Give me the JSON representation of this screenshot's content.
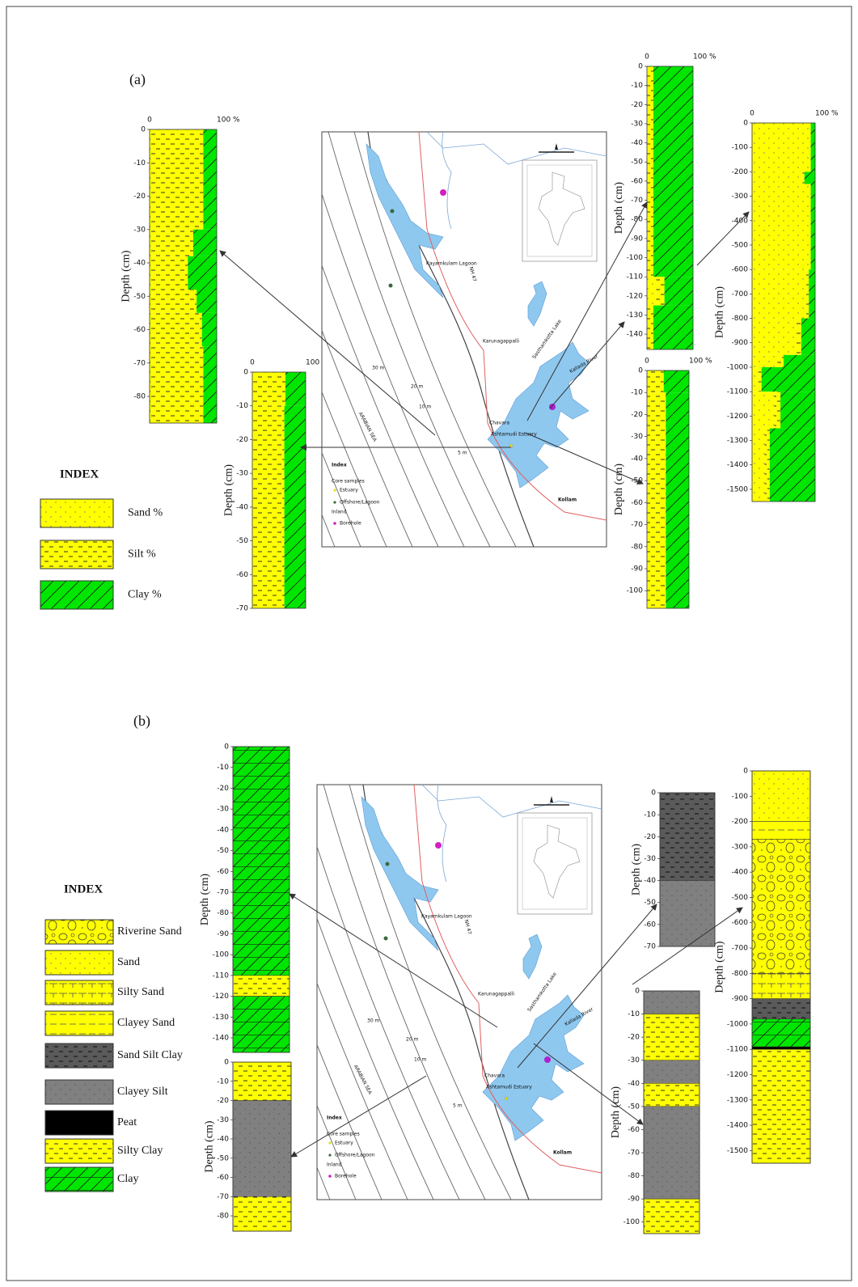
{
  "panels": [
    {
      "label": "(a)",
      "index": {
        "title": "INDEX",
        "items": [
          {
            "label": "Sand %",
            "color": "#ffff00"
          },
          {
            "label": "Silt %",
            "color": "#ffff00"
          },
          {
            "label": "Clay %",
            "color": "#00e600"
          }
        ]
      },
      "cores": [
        {
          "axis_label": "Depth (cm)",
          "pct_ticks": [
            0,
            {
              "value": 100,
              "label": "100 %"
            }
          ],
          "ylim": [
            0,
            -88
          ],
          "yticks": [
            0,
            -10,
            -20,
            -30,
            -40,
            -50,
            -60,
            -70,
            -80
          ],
          "layers": [
            {
              "from": 0,
              "to": -30,
              "sand": 0,
              "silt": 80,
              "clay": 20
            },
            {
              "from": -30,
              "to": -38,
              "sand": 0,
              "silt": 65,
              "clay": 35
            },
            {
              "from": -38,
              "to": -48,
              "sand": 0,
              "silt": 57,
              "clay": 43
            },
            {
              "from": -48,
              "to": -55,
              "sand": 0,
              "silt": 70,
              "clay": 30
            },
            {
              "from": -55,
              "to": -65,
              "sand": 0,
              "silt": 78,
              "clay": 22
            },
            {
              "from": -65,
              "to": -88,
              "sand": 0,
              "silt": 80,
              "clay": 20
            }
          ]
        },
        {
          "axis_label": "Depth (cm)",
          "pct_ticks": [
            0,
            {
              "value": 100,
              "label": "100 %"
            }
          ],
          "ylim": [
            0,
            -70
          ],
          "yticks": [
            0,
            -10,
            -20,
            -30,
            -40,
            -50,
            -60,
            -70
          ],
          "layers": [
            {
              "from": 0,
              "to": -10,
              "sand": 0,
              "silt": 62,
              "clay": 38
            },
            {
              "from": -10,
              "to": -70,
              "sand": 0,
              "silt": 60,
              "clay": 40
            }
          ]
        },
        {
          "axis_label": "Depth (cm)",
          "pct_ticks": [
            0,
            {
              "value": 100,
              "label": "100 %"
            }
          ],
          "ylim": [
            0,
            -148
          ],
          "yticks": [
            0,
            -10,
            -20,
            -30,
            -40,
            -50,
            -60,
            -70,
            -80,
            -90,
            -100,
            -110,
            -120,
            -130,
            -140
          ],
          "layers": [
            {
              "from": 0,
              "to": -110,
              "sand": 0,
              "silt": 14,
              "clay": 86
            },
            {
              "from": -110,
              "to": -125,
              "sand": 20,
              "silt": 18,
              "clay": 62
            },
            {
              "from": -125,
              "to": -148,
              "sand": 0,
              "silt": 14,
              "clay": 86
            }
          ]
        },
        {
          "axis_label": "Depth (cm)",
          "pct_ticks": [
            0,
            {
              "value": 100,
              "label": "100 %"
            }
          ],
          "ylim": [
            0,
            -1550
          ],
          "yticks": [
            0,
            -100,
            -200,
            -300,
            -400,
            -500,
            -600,
            -700,
            -800,
            -900,
            -1000,
            -1100,
            -1200,
            -1300,
            -1400,
            -1500
          ],
          "layers": [
            {
              "from": 0,
              "to": -200,
              "sand": 93,
              "silt": 0,
              "clay": 7
            },
            {
              "from": -200,
              "to": -250,
              "sand": 80,
              "silt": 3,
              "clay": 17
            },
            {
              "from": -250,
              "to": -600,
              "sand": 93,
              "silt": 0,
              "clay": 7
            },
            {
              "from": -600,
              "to": -800,
              "sand": 85,
              "silt": 5,
              "clay": 10
            },
            {
              "from": -800,
              "to": -950,
              "sand": 70,
              "silt": 8,
              "clay": 22
            },
            {
              "from": -950,
              "to": -1000,
              "sand": 40,
              "silt": 10,
              "clay": 50
            },
            {
              "from": -1000,
              "to": -1100,
              "sand": 10,
              "silt": 5,
              "clay": 85
            },
            {
              "from": -1100,
              "to": -1250,
              "sand": 35,
              "silt": 10,
              "clay": 55
            },
            {
              "from": -1250,
              "to": -1550,
              "sand": 20,
              "silt": 8,
              "clay": 72
            }
          ]
        },
        {
          "axis_label": "Depth (cm)",
          "pct_ticks": [
            0,
            {
              "value": 100,
              "label": "100 %"
            }
          ],
          "ylim": [
            0,
            -108
          ],
          "yticks": [
            0,
            -10,
            -20,
            -30,
            -40,
            -50,
            -60,
            -70,
            -80,
            -90,
            -100
          ],
          "layers": [
            {
              "from": 0,
              "to": -10,
              "sand": 0,
              "silt": 40,
              "clay": 60
            },
            {
              "from": -10,
              "to": -108,
              "sand": 0,
              "silt": 45,
              "clay": 55
            }
          ]
        }
      ]
    },
    {
      "label": "(b)",
      "index": {
        "title": "INDEX",
        "items": [
          {
            "label": "Riverine Sand",
            "color": "#ffff00"
          },
          {
            "label": "Sand",
            "color": "#ffff00"
          },
          {
            "label": "Silty Sand",
            "color": "#ffff00"
          },
          {
            "label": "Clayey Sand",
            "color": "#ffff00"
          },
          {
            "label": "Sand Silt Clay",
            "color": "#5a5a5a"
          },
          {
            "label": "Clayey Silt",
            "color": "#808080"
          },
          {
            "label": "Peat",
            "color": "#000000"
          },
          {
            "label": "Silty Clay",
            "color": "#ffff00"
          },
          {
            "label": "Clay",
            "color": "#00e600"
          }
        ]
      },
      "cores": [
        {
          "axis_label": "Depth (cm)",
          "ylim": [
            0,
            -147
          ],
          "yticks": [
            0,
            -10,
            -20,
            -30,
            -40,
            -50,
            -60,
            -70,
            -80,
            -90,
            -100,
            -110,
            -120,
            -130,
            -140
          ],
          "layers": [
            {
              "from": 0,
              "to": -110,
              "lith": "Clay"
            },
            {
              "from": -110,
              "to": -120,
              "lith": "Silty Clay"
            },
            {
              "from": -120,
              "to": -147,
              "lith": "Clay"
            }
          ]
        },
        {
          "axis_label": "Depth (cm)",
          "ylim": [
            0,
            -88
          ],
          "yticks": [
            0,
            -10,
            -20,
            -30,
            -40,
            -50,
            -60,
            -70,
            -80
          ],
          "layers": [
            {
              "from": 0,
              "to": -20,
              "lith": "Silty Clay"
            },
            {
              "from": -20,
              "to": -70,
              "lith": "Clayey Silt"
            },
            {
              "from": -70,
              "to": -88,
              "lith": "Silty Clay"
            }
          ]
        },
        {
          "axis_label": "Depth (cm)",
          "ylim": [
            0,
            -70
          ],
          "yticks": [
            0,
            -10,
            -20,
            -30,
            -40,
            -50,
            -60,
            -70
          ],
          "layers": [
            {
              "from": 0,
              "to": -40,
              "lith": "Sand Silt Clay"
            },
            {
              "from": -40,
              "to": -70,
              "lith": "Clayey Silt"
            }
          ]
        },
        {
          "axis_label": "Depth (cm)",
          "ylim": [
            0,
            -105
          ],
          "yticks": [
            0,
            -10,
            -20,
            -30,
            -40,
            -50,
            -60,
            -70,
            -80,
            -90,
            -100
          ],
          "layers": [
            {
              "from": 0,
              "to": -10,
              "lith": "Clayey Silt"
            },
            {
              "from": -10,
              "to": -30,
              "lith": "Silty Clay"
            },
            {
              "from": -30,
              "to": -40,
              "lith": "Clayey Silt"
            },
            {
              "from": -40,
              "to": -50,
              "lith": "Silty Clay"
            },
            {
              "from": -50,
              "to": -90,
              "lith": "Clayey Silt"
            },
            {
              "from": -90,
              "to": -105,
              "lith": "Silty Clay"
            }
          ]
        },
        {
          "axis_label": "Depth (cm)",
          "ylim": [
            0,
            -1550
          ],
          "yticks": [
            0,
            -100,
            -200,
            -300,
            -400,
            -500,
            -600,
            -700,
            -800,
            -900,
            -1000,
            -1100,
            -1200,
            -1300,
            -1400,
            -1500
          ],
          "layers": [
            {
              "from": 0,
              "to": -200,
              "lith": "Sand"
            },
            {
              "from": -200,
              "to": -270,
              "lith": "Clayey Sand"
            },
            {
              "from": -270,
              "to": -800,
              "lith": "Riverine Sand"
            },
            {
              "from": -800,
              "to": -900,
              "lith": "Silty Sand"
            },
            {
              "from": -900,
              "to": -980,
              "lith": "Sand Silt Clay"
            },
            {
              "from": -980,
              "to": -1090,
              "lith": "Clay"
            },
            {
              "from": -1090,
              "to": -1100,
              "lith": "Peat"
            },
            {
              "from": -1100,
              "to": -1550,
              "lith": "Silty Clay"
            }
          ]
        }
      ]
    }
  ],
  "map": {
    "labels": [
      "Kayamkulam Lagoon",
      "Karunagappalli",
      "Sasthamkotta Lake",
      "Kallada River",
      "Chavara",
      "Ashtamudi Estuary",
      "Kollam",
      "ARABIAN SEA",
      "NH 47",
      "Index",
      "Core samples",
      "Estuary",
      "Offshore/Lagoon",
      "Inland",
      "Borehole"
    ],
    "contour_labels": [
      "30 m",
      "20 m",
      "10 m",
      "5 m"
    ]
  }
}
